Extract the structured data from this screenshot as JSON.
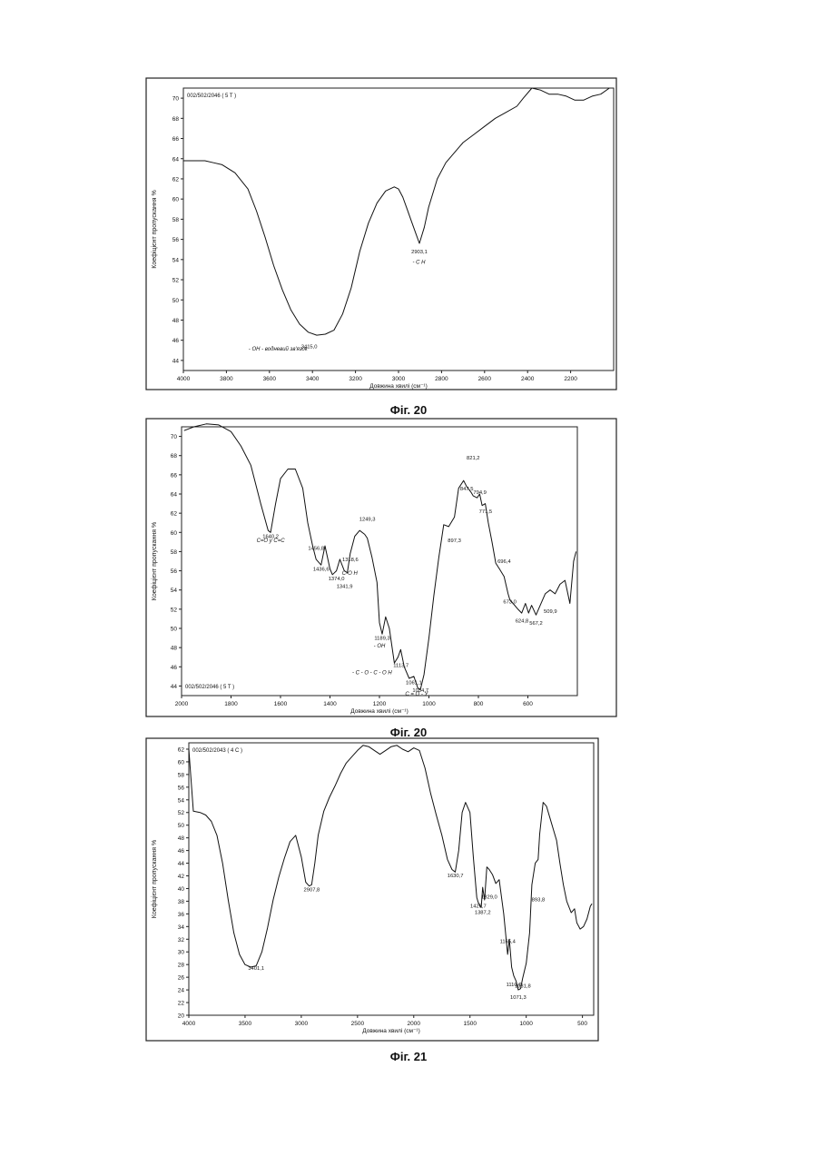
{
  "figures": [
    {
      "caption": "Фіг. 20"
    },
    {
      "caption": "Фіг. 20"
    },
    {
      "caption": "Фіг. 21"
    }
  ],
  "chart_data": [
    {
      "type": "line",
      "title": "",
      "legend_text": "002/502/2046 ( 5 T )",
      "xlabel": "Довжина хвилі (см⁻¹)",
      "ylabel": "Коефіцієнт пропускання %",
      "xlim": [
        4000,
        2000
      ],
      "ylim": [
        43,
        71
      ],
      "xticks": [
        4000,
        3800,
        3600,
        3400,
        3200,
        3000,
        2800,
        2600,
        2400,
        2200
      ],
      "yticks": [
        44,
        46,
        48,
        50,
        52,
        54,
        56,
        58,
        60,
        62,
        64,
        66,
        68,
        70
      ],
      "grid": false,
      "series": [
        {
          "x": [
            4000,
            3900,
            3860,
            3820,
            3760,
            3700,
            3660,
            3620,
            3580,
            3540,
            3500,
            3460,
            3420,
            3380,
            3340,
            3300,
            3260,
            3220,
            3180,
            3140,
            3100,
            3060,
            3020,
            3000,
            2980,
            2960,
            2940,
            2920,
            2903,
            2880,
            2860,
            2820,
            2780,
            2740,
            2700,
            2650,
            2600,
            2550,
            2500,
            2450,
            2420,
            2380,
            2340,
            2300,
            2260,
            2220,
            2180,
            2140,
            2100,
            2060,
            2020
          ],
          "y": [
            63.8,
            63.8,
            63.6,
            63.4,
            62.6,
            61.0,
            58.8,
            56.2,
            53.4,
            51.0,
            49.0,
            47.6,
            46.8,
            46.5,
            46.6,
            47.0,
            48.6,
            51.2,
            54.8,
            57.6,
            59.6,
            60.8,
            61.2,
            61.0,
            60.2,
            59.0,
            57.8,
            56.6,
            55.6,
            57.2,
            59.2,
            62.0,
            63.6,
            64.6,
            65.6,
            66.4,
            67.2,
            68.0,
            68.6,
            69.2,
            70.0,
            71.0,
            70.8,
            70.4,
            70.4,
            70.2,
            69.8,
            69.8,
            70.2,
            70.4,
            71.0
          ]
        }
      ],
      "peak_labels": [
        "3415,0",
        "2903,1"
      ],
      "annotations": [
        "- ОН - водневий зв'язок",
        "- С Н"
      ]
    },
    {
      "type": "line",
      "title": "",
      "legend_text": "002/502/2046 ( 5 T )",
      "xlabel": "Довжина хвилі (см⁻¹)",
      "ylabel": "Коефіцієнт пропускання %",
      "xlim": [
        2000,
        400
      ],
      "ylim": [
        43,
        71
      ],
      "xticks": [
        2000,
        1800,
        1600,
        1400,
        1200,
        1000,
        800,
        600
      ],
      "yticks": [
        44,
        46,
        48,
        50,
        52,
        54,
        56,
        58,
        60,
        62,
        64,
        66,
        68,
        70
      ],
      "grid": false,
      "series": [
        {
          "x": [
            1990,
            1950,
            1900,
            1850,
            1800,
            1760,
            1720,
            1680,
            1650,
            1640,
            1620,
            1600,
            1570,
            1540,
            1510,
            1490,
            1470,
            1456,
            1436,
            1420,
            1400,
            1390,
            1374,
            1360,
            1342,
            1330,
            1318,
            1300,
            1280,
            1260,
            1249,
            1230,
            1210,
            1200,
            1189,
            1175,
            1160,
            1140,
            1125,
            1114,
            1100,
            1080,
            1061,
            1045,
            1035,
            1020,
            1000,
            980,
            960,
            940,
            920,
            897,
            880,
            860,
            848,
            830,
            821,
            805,
            795,
            785,
            772,
            760,
            745,
            730,
            715,
            696,
            680,
            673,
            660,
            640,
            625,
            610,
            597,
            585,
            567,
            550,
            530,
            510,
            490,
            470,
            450,
            430,
            415,
            405
          ],
          "y": [
            70.6,
            71.0,
            71.3,
            71.2,
            70.5,
            69.0,
            67.0,
            63.0,
            60.2,
            60.0,
            63.0,
            65.6,
            66.6,
            66.6,
            64.6,
            61.0,
            58.6,
            57.2,
            56.6,
            58.6,
            56.2,
            55.6,
            56.0,
            57.2,
            56.0,
            55.8,
            57.8,
            59.6,
            60.2,
            59.8,
            59.4,
            57.4,
            54.8,
            50.6,
            49.4,
            51.2,
            50.0,
            46.4,
            47.0,
            47.8,
            46.0,
            44.8,
            45.0,
            43.8,
            43.6,
            45.2,
            49.0,
            53.4,
            57.4,
            60.8,
            60.6,
            61.6,
            64.6,
            65.4,
            64.8,
            64.2,
            63.8,
            63.6,
            64.0,
            62.8,
            63.0,
            61.0,
            59.0,
            56.8,
            56.2,
            55.4,
            53.6,
            53.0,
            52.6,
            52.0,
            51.6,
            52.6,
            51.6,
            52.4,
            51.4,
            52.4,
            53.6,
            54.0,
            53.6,
            54.6,
            55.0,
            52.6,
            57.0,
            58.0
          ]
        }
      ],
      "peak_labels": [
        "1640,2",
        "1456,8",
        "1436,6",
        "1374,0",
        "1341,9",
        "1318,6",
        "1249,3",
        "1189,3",
        "1113,7",
        "1061,1",
        "1034,7",
        "897,3",
        "847,5",
        "821,2",
        "794,9",
        "771,5",
        "696,4",
        "673,0",
        "624,8",
        "567,2",
        "509,9"
      ],
      "annotations": [
        "С=О у С=С",
        "- ОН",
        "- С - О - С - О Н",
        "С = О - У",
        "С-О Н"
      ]
    },
    {
      "type": "line",
      "title": "",
      "legend_text": "002/502/2043 ( 4 C )",
      "xlabel": "Довжина хвилі (см⁻¹)",
      "ylabel": "Коефіцієнт пропускання %",
      "xlim": [
        4000,
        400
      ],
      "ylim": [
        20,
        63
      ],
      "xticks": [
        4000,
        3500,
        3000,
        2500,
        2000,
        1500,
        1000,
        500
      ],
      "yticks": [
        20,
        22,
        24,
        26,
        28,
        30,
        32,
        34,
        36,
        38,
        40,
        42,
        44,
        46,
        48,
        50,
        52,
        54,
        56,
        58,
        60,
        62
      ],
      "grid": false,
      "series": [
        {
          "x": [
            4000,
            3960,
            3900,
            3850,
            3800,
            3750,
            3700,
            3650,
            3600,
            3550,
            3500,
            3450,
            3401,
            3350,
            3300,
            3250,
            3200,
            3150,
            3100,
            3050,
            3000,
            2960,
            2930,
            2908,
            2880,
            2850,
            2800,
            2750,
            2700,
            2650,
            2600,
            2550,
            2500,
            2450,
            2400,
            2350,
            2300,
            2250,
            2200,
            2150,
            2100,
            2050,
            2000,
            1950,
            1900,
            1850,
            1800,
            1750,
            1700,
            1660,
            1631,
            1600,
            1570,
            1540,
            1500,
            1470,
            1440,
            1427,
            1400,
            1387,
            1370,
            1350,
            1329,
            1300,
            1270,
            1240,
            1200,
            1165,
            1150,
            1130,
            1110,
            1090,
            1071,
            1050,
            1032,
            1000,
            970,
            950,
            920,
            894,
            880,
            850,
            820,
            790,
            760,
            730,
            700,
            670,
            640,
            600,
            570,
            550,
            520,
            490,
            460,
            430,
            415
          ],
          "y": [
            62,
            52.2,
            52.0,
            51.6,
            50.6,
            48.4,
            44.0,
            38.2,
            33.0,
            29.6,
            28.0,
            27.6,
            27.8,
            30.0,
            33.8,
            38.2,
            41.8,
            44.8,
            47.4,
            48.4,
            45.0,
            41.0,
            40.4,
            40.6,
            44.0,
            48.4,
            52.2,
            54.4,
            56.2,
            58.2,
            59.8,
            60.8,
            61.8,
            62.6,
            62.4,
            61.8,
            61.2,
            61.8,
            62.4,
            62.6,
            62.0,
            61.6,
            62.2,
            61.8,
            59.0,
            55.0,
            51.6,
            48.4,
            44.6,
            43.0,
            42.6,
            46.0,
            52.0,
            53.6,
            52.0,
            45.0,
            38.6,
            37.8,
            37.0,
            40.2,
            38.2,
            43.4,
            43.0,
            42.2,
            40.8,
            41.4,
            36.0,
            29.6,
            32.0,
            27.6,
            26.2,
            25.4,
            24.0,
            24.2,
            25.8,
            28.2,
            33.0,
            40.6,
            44.0,
            44.6,
            48.6,
            53.6,
            53.0,
            51.2,
            49.4,
            47.6,
            44.0,
            40.6,
            38.0,
            36.2,
            36.8,
            34.6,
            33.6,
            34.0,
            35.2,
            37.2,
            37.6
          ]
        }
      ],
      "peak_labels": [
        "3401,1",
        "2907,8",
        "1630,7",
        "1426,7",
        "1387,2",
        "1329,0",
        "1165,4",
        "1031,8",
        "1071,3",
        "1110,6",
        "893,8"
      ],
      "annotations": []
    }
  ]
}
